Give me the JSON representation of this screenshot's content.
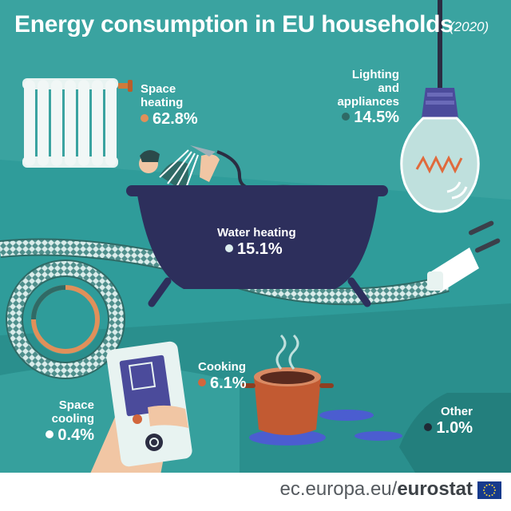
{
  "title": "Energy consumption in EU households",
  "year": "(2020)",
  "chart_data": {
    "type": "pie",
    "title": "Energy consumption in EU households",
    "subtitle": "(2020)",
    "categories": [
      "Space heating",
      "Lighting and appliances",
      "Water heating",
      "Cooking",
      "Space cooling",
      "Other"
    ],
    "values": [
      62.8,
      14.5,
      15.1,
      6.1,
      0.4,
      1.0
    ],
    "value_labels": [
      "62.8%",
      "14.5%",
      "15.1%",
      "6.1%",
      "0.4%",
      "1.0%"
    ],
    "unit": "%"
  },
  "labels": {
    "space_heating": {
      "name": "Space heating",
      "value": "62.8%"
    },
    "lighting": {
      "name_1": "Lighting",
      "name_2": "and",
      "name_3": "appliances",
      "value": "14.5%"
    },
    "water_heating": {
      "name": "Water heating",
      "value": "15.1%"
    },
    "cooking": {
      "name": "Cooking",
      "value": "6.1%"
    },
    "space_cooling": {
      "name_1": "Space",
      "name_2": "cooling",
      "value": "0.4%"
    },
    "other": {
      "name": "Other",
      "value": "1.0%"
    }
  },
  "colors": {
    "background": "#2f9c9a",
    "space_heating": "#e0905a",
    "lighting": "#2f6a66",
    "water_heating": "#dceeee",
    "cooking": "#d2663c",
    "space_cooling": "#ffffff",
    "other": "#1f2a36"
  },
  "footer": {
    "site": "ec.europa.eu/",
    "brand": "eurostat"
  }
}
